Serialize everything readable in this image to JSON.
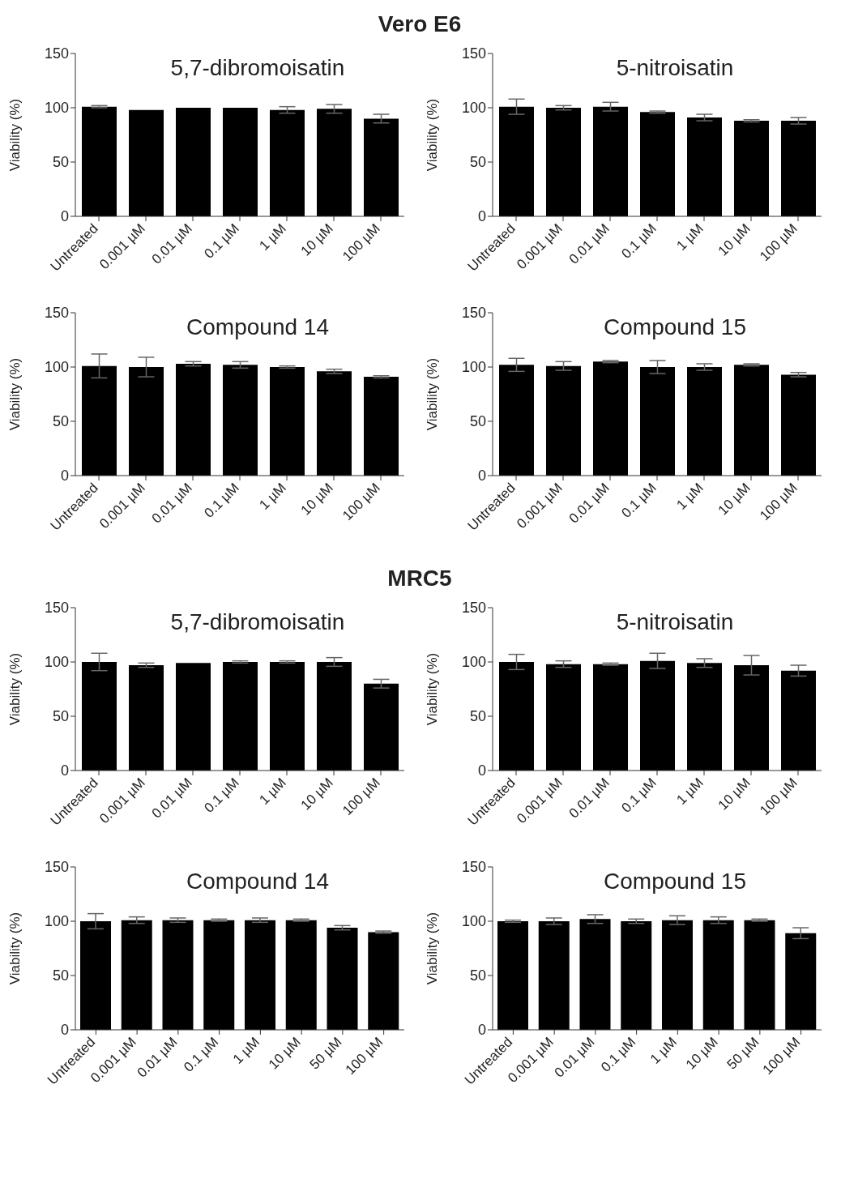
{
  "chart_data": [
    {
      "type": "bar",
      "annotations": [
        "Vero E6"
      ],
      "title": "5,7-dibromoisatin",
      "ylabel": "Viability (%)",
      "categories": [
        "Untreated",
        "0.001 µM",
        "0.01 µM",
        "0.1 µM",
        "1 µM",
        "10 µM",
        "100 µM"
      ],
      "values": [
        101,
        98,
        100,
        100,
        98,
        99,
        90
      ],
      "errors": [
        1,
        null,
        null,
        null,
        3,
        4,
        4
      ],
      "color": "#000000",
      "ylim": [
        0,
        150
      ],
      "yticks": [
        0,
        50,
        100,
        150
      ]
    },
    {
      "type": "bar",
      "title": "5-nitroisatin",
      "ylabel": "Viability (%)",
      "categories": [
        "Untreated",
        "0.001 µM",
        "0.01 µM",
        "0.1 µM",
        "1 µM",
        "10 µM",
        "100 µM"
      ],
      "values": [
        101,
        100,
        101,
        96,
        91,
        88,
        88
      ],
      "errors": [
        7,
        2,
        4,
        1,
        3,
        1,
        3
      ],
      "color": "#000000",
      "ylim": [
        0,
        150
      ],
      "yticks": [
        0,
        50,
        100,
        150
      ]
    },
    {
      "type": "bar",
      "title": "Compound 14",
      "ylabel": "Viability (%)",
      "categories": [
        "Untreated",
        "0.001 µM",
        "0.01 µM",
        "0.1 µM",
        "1 µM",
        "10 µM",
        "100 µM"
      ],
      "values": [
        101,
        100,
        103,
        102,
        100,
        96,
        91
      ],
      "errors": [
        11,
        9,
        2,
        3,
        1,
        2,
        1
      ],
      "color": "#000000",
      "ylim": [
        0,
        150
      ],
      "yticks": [
        0,
        50,
        100,
        150
      ]
    },
    {
      "type": "bar",
      "title": "Compound 15",
      "ylabel": "Viability (%)",
      "categories": [
        "Untreated",
        "0.001 µM",
        "0.01 µM",
        "0.1 µM",
        "1 µM",
        "10 µM",
        "100 µM"
      ],
      "values": [
        102,
        101,
        105,
        100,
        100,
        102,
        93
      ],
      "errors": [
        6,
        4,
        1,
        6,
        3,
        1,
        2
      ],
      "color": "#000000",
      "ylim": [
        0,
        150
      ],
      "yticks": [
        0,
        50,
        100,
        150
      ]
    },
    {
      "type": "bar",
      "annotations": [
        "MRC5"
      ],
      "title": "5,7-dibromoisatin",
      "ylabel": "Viability (%)",
      "categories": [
        "Untreated",
        "0.001 µM",
        "0.01 µM",
        "0.1 µM",
        "1 µM",
        "10 µM",
        "100 µM"
      ],
      "values": [
        100,
        97,
        99,
        100,
        100,
        100,
        80
      ],
      "errors": [
        8,
        2,
        null,
        1,
        1,
        4,
        4
      ],
      "color": "#000000",
      "ylim": [
        0,
        150
      ],
      "yticks": [
        0,
        50,
        100,
        150
      ]
    },
    {
      "type": "bar",
      "title": "5-nitroisatin",
      "ylabel": "Viability (%)",
      "categories": [
        "Untreated",
        "0.001 µM",
        "0.01 µM",
        "0.1 µM",
        "1 µM",
        "10 µM",
        "100 µM"
      ],
      "values": [
        100,
        98,
        98,
        101,
        99,
        97,
        92
      ],
      "errors": [
        7,
        3,
        1,
        7,
        4,
        9,
        5
      ],
      "color": "#000000",
      "ylim": [
        0,
        150
      ],
      "yticks": [
        0,
        50,
        100,
        150
      ]
    },
    {
      "type": "bar",
      "title": "Compound 14",
      "ylabel": "Viability (%)",
      "categories": [
        "Untreated",
        "0.001 µM",
        "0.01 µM",
        "0.1 µM",
        "1 µM",
        "10 µM",
        "50 µM",
        "100 µM"
      ],
      "values": [
        100,
        101,
        101,
        101,
        101,
        101,
        94,
        90
      ],
      "errors": [
        7,
        3,
        2,
        1,
        2,
        1,
        2,
        1
      ],
      "color": "#000000",
      "ylim": [
        0,
        150
      ],
      "yticks": [
        0,
        50,
        100,
        150
      ]
    },
    {
      "type": "bar",
      "title": "Compound 15",
      "ylabel": "Viability (%)",
      "categories": [
        "Untreated",
        "0.001 µM",
        "0.01 µM",
        "0.1 µM",
        "1 µM",
        "10 µM",
        "50 µM",
        "100 µM"
      ],
      "values": [
        100,
        100,
        102,
        100,
        101,
        101,
        101,
        89
      ],
      "errors": [
        1,
        3,
        4,
        2,
        4,
        3,
        1,
        5
      ],
      "color": "#000000",
      "ylim": [
        0,
        150
      ],
      "yticks": [
        0,
        50,
        100,
        150
      ]
    }
  ]
}
